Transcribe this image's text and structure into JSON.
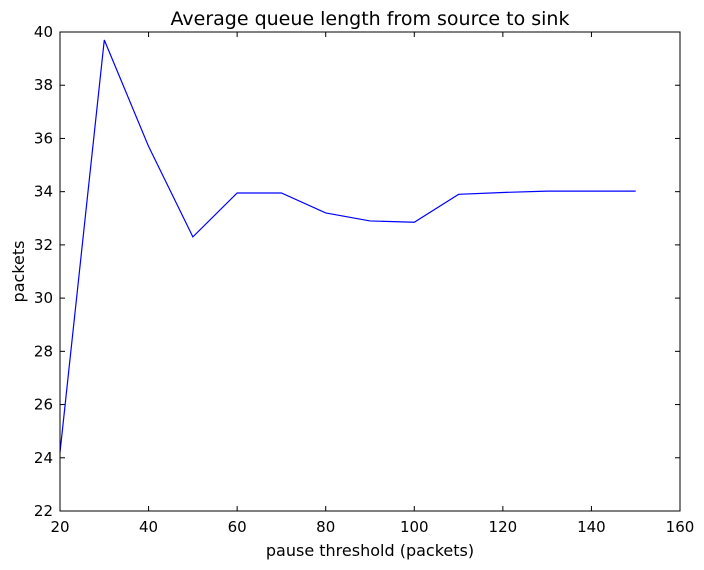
{
  "chart_data": {
    "type": "line",
    "title": "Average queue length from source to sink",
    "xlabel": "pause threshold (packets)",
    "ylabel": "packets",
    "xlim": [
      20,
      160
    ],
    "ylim": [
      22,
      40
    ],
    "xticks": [
      20,
      40,
      60,
      80,
      100,
      120,
      140,
      160
    ],
    "yticks": [
      22,
      24,
      26,
      28,
      30,
      32,
      34,
      36,
      38,
      40
    ],
    "grid": false,
    "legend": "none",
    "series": [
      {
        "color": "#0000ff",
        "x": [
          20,
          30,
          40,
          50,
          60,
          70,
          80,
          90,
          100,
          110,
          120,
          130,
          140,
          150
        ],
        "y": [
          24.2,
          39.7,
          35.7,
          32.3,
          33.95,
          33.95,
          33.2,
          32.9,
          32.85,
          33.9,
          33.97,
          34.02,
          34.02,
          34.02
        ]
      }
    ]
  }
}
